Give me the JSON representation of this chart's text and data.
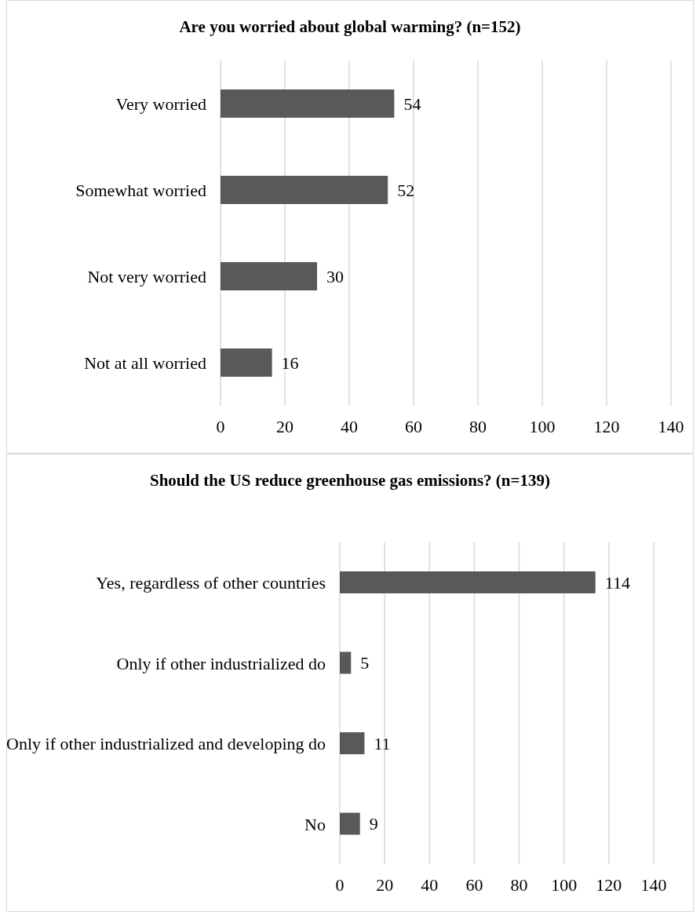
{
  "chart_data": [
    {
      "type": "bar",
      "orientation": "horizontal",
      "title": "Are you worried about global warming? (n=152)",
      "categories": [
        "Very worried",
        "Somewhat worried",
        "Not very worried",
        "Not at all worried"
      ],
      "values": [
        54,
        52,
        30,
        16
      ],
      "color": "#595959",
      "xlim": [
        0,
        140
      ],
      "xticks": [
        0,
        20,
        40,
        60,
        80,
        100,
        120,
        140
      ],
      "grid": "x",
      "data_labels": true
    },
    {
      "type": "bar",
      "orientation": "horizontal",
      "title": "Should the US reduce greenhouse gas emissions? (n=139)",
      "categories": [
        "Yes, regardless of other countries",
        "Only if other industrialized do",
        "Only if other industrialized and developing do",
        "No"
      ],
      "values": [
        114,
        5,
        11,
        9
      ],
      "color": "#595959",
      "xlim": [
        0,
        140
      ],
      "xticks": [
        0,
        20,
        40,
        60,
        80,
        100,
        120,
        140
      ],
      "grid": "x",
      "data_labels": true
    }
  ]
}
